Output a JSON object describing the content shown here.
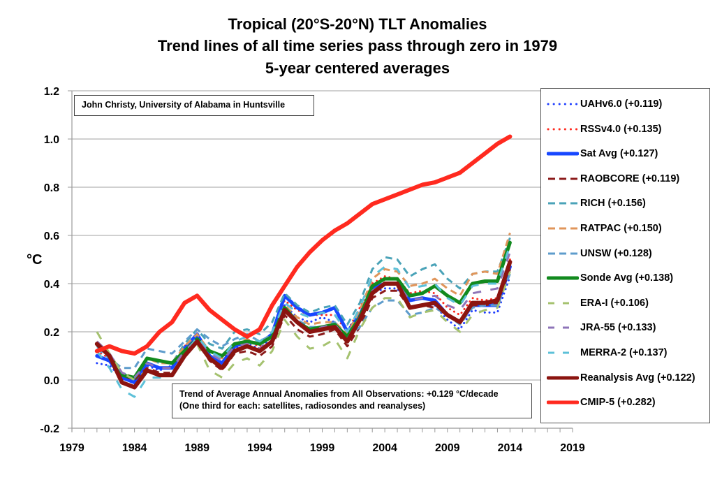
{
  "chart_data": {
    "type": "line",
    "title": "Tropical (20°S-20°N) TLT Anomalies",
    "subtitle_lines": [
      "Trend lines of all time series pass through zero in 1979",
      "5-year centered averages"
    ],
    "xlabel": "",
    "ylabel": "°C",
    "xlim": [
      1979,
      2019
    ],
    "ylim": [
      -0.2,
      1.2
    ],
    "x_ticks": [
      "1979",
      "1984",
      "1989",
      "1994",
      "1999",
      "2004",
      "2009",
      "2014",
      "2019"
    ],
    "y_ticks": [
      "-0.2",
      "0.0",
      "0.2",
      "0.4",
      "0.6",
      "0.8",
      "1.0",
      "1.2"
    ],
    "grid": "horizontal",
    "legend_position": "right",
    "annotations": {
      "credit": "John Christy, University of Alabama in Huntsville",
      "trend_line1": "Trend of Average Annual Anomalies from All Observations: +0.129 °C/decade",
      "trend_line2": "(One third for each: satellites, radiosondes and reanalyses)"
    },
    "x": [
      1981,
      1982,
      1983,
      1984,
      1985,
      1986,
      1987,
      1988,
      1989,
      1990,
      1991,
      1992,
      1993,
      1994,
      1995,
      1996,
      1997,
      1998,
      1999,
      2000,
      2001,
      2002,
      2003,
      2004,
      2005,
      2006,
      2007,
      2008,
      2009,
      2010,
      2011,
      2012,
      2013,
      2014
    ],
    "series": [
      {
        "name": "UAHv6.0 (+0.119)",
        "color": "#1f3fff",
        "style": "dotted",
        "width": 3,
        "values": [
          0.07,
          0.06,
          0.01,
          -0.01,
          0.06,
          0.04,
          0.06,
          0.13,
          0.18,
          0.09,
          0.05,
          0.13,
          0.15,
          0.13,
          0.18,
          0.31,
          0.26,
          0.24,
          0.26,
          0.24,
          0.17,
          0.24,
          0.36,
          0.38,
          0.38,
          0.3,
          0.31,
          0.31,
          0.25,
          0.21,
          0.29,
          0.28,
          0.28,
          0.43
        ]
      },
      {
        "name": "RSSv4.0 (+0.135)",
        "color": "#ff2a1f",
        "style": "dotted",
        "width": 3,
        "values": [
          0.12,
          0.09,
          0.02,
          0.0,
          0.07,
          0.05,
          0.05,
          0.14,
          0.19,
          0.12,
          0.09,
          0.15,
          0.16,
          0.14,
          0.19,
          0.33,
          0.29,
          0.27,
          0.27,
          0.27,
          0.2,
          0.3,
          0.4,
          0.43,
          0.42,
          0.36,
          0.37,
          0.36,
          0.3,
          0.27,
          0.34,
          0.33,
          0.34,
          0.5
        ]
      },
      {
        "name": "Sat Avg (+0.127)",
        "color": "#1747ff",
        "style": "solid",
        "width": 5,
        "values": [
          0.1,
          0.08,
          0.01,
          -0.01,
          0.07,
          0.05,
          0.05,
          0.13,
          0.19,
          0.1,
          0.07,
          0.14,
          0.16,
          0.15,
          0.19,
          0.35,
          0.3,
          0.27,
          0.28,
          0.3,
          0.2,
          0.27,
          0.38,
          0.4,
          0.4,
          0.33,
          0.34,
          0.33,
          0.27,
          0.24,
          0.31,
          0.31,
          0.31,
          0.47
        ]
      },
      {
        "name": "RAOBCORE (+0.119)",
        "color": "#8b1a1a",
        "style": "dashed",
        "width": 3,
        "values": [
          0.16,
          0.11,
          0.02,
          0.0,
          0.05,
          0.03,
          0.03,
          0.1,
          0.16,
          0.08,
          0.04,
          0.11,
          0.12,
          0.1,
          0.14,
          0.27,
          0.21,
          0.18,
          0.19,
          0.21,
          0.14,
          0.22,
          0.34,
          0.37,
          0.37,
          0.3,
          0.31,
          0.3,
          0.27,
          0.24,
          0.31,
          0.31,
          0.32,
          0.46
        ]
      },
      {
        "name": "RICH (+0.156)",
        "color": "#4aa3b8",
        "style": "dashed",
        "width": 3,
        "values": [
          0.14,
          0.1,
          0.03,
          0.01,
          0.09,
          0.07,
          0.07,
          0.15,
          0.21,
          0.15,
          0.13,
          0.2,
          0.21,
          0.19,
          0.24,
          0.36,
          0.31,
          0.28,
          0.3,
          0.31,
          0.23,
          0.32,
          0.46,
          0.51,
          0.5,
          0.43,
          0.46,
          0.48,
          0.42,
          0.38,
          0.44,
          0.45,
          0.45,
          0.59
        ]
      },
      {
        "name": "RATPAC (+0.150)",
        "color": "#e0955a",
        "style": "dashed",
        "width": 3,
        "values": [
          0.15,
          0.11,
          0.03,
          0.01,
          0.09,
          0.07,
          0.07,
          0.14,
          0.19,
          0.12,
          0.09,
          0.15,
          0.17,
          0.15,
          0.18,
          0.31,
          0.26,
          0.23,
          0.24,
          0.24,
          0.19,
          0.29,
          0.42,
          0.46,
          0.45,
          0.39,
          0.4,
          0.42,
          0.38,
          0.35,
          0.44,
          0.45,
          0.44,
          0.61
        ]
      },
      {
        "name": "UNSW (+0.128)",
        "color": "#5e9ccc",
        "style": "dashed",
        "width": 3,
        "values": [
          0.13,
          0.09,
          0.05,
          0.05,
          0.13,
          0.12,
          0.11,
          0.16,
          0.21,
          0.17,
          0.14,
          0.17,
          0.19,
          0.16,
          0.19,
          0.29,
          0.25,
          0.22,
          0.22,
          0.24,
          0.18,
          0.22,
          0.3,
          0.33,
          0.33,
          0.27,
          0.28,
          0.3,
          0.27,
          0.23,
          0.3,
          0.31,
          0.31,
          0.44
        ]
      },
      {
        "name": "Sonde Avg (+0.138)",
        "color": "#128a1e",
        "style": "solid",
        "width": 5,
        "values": [
          0.15,
          0.1,
          0.02,
          0.01,
          0.09,
          0.08,
          0.07,
          0.12,
          0.17,
          0.12,
          0.1,
          0.15,
          0.16,
          0.15,
          0.18,
          0.3,
          0.24,
          0.21,
          0.22,
          0.23,
          0.18,
          0.26,
          0.39,
          0.42,
          0.42,
          0.35,
          0.36,
          0.39,
          0.35,
          0.32,
          0.4,
          0.41,
          0.41,
          0.57
        ]
      },
      {
        "name": "ERA-I (+0.106)",
        "color": "#a5c26f",
        "style": "dashed-long",
        "width": 3,
        "values": [
          0.2,
          0.11,
          0.03,
          0.0,
          0.04,
          0.02,
          0.03,
          0.1,
          0.15,
          0.04,
          0.01,
          0.07,
          0.09,
          0.06,
          0.12,
          0.25,
          0.18,
          0.13,
          0.14,
          0.17,
          0.09,
          0.21,
          0.3,
          0.34,
          0.34,
          0.26,
          0.28,
          0.29,
          0.24,
          0.2,
          0.27,
          0.29,
          0.3,
          0.45
        ]
      },
      {
        "name": "JRA-55 (+0.133)",
        "color": "#8e74b8",
        "style": "dashed-long",
        "width": 3,
        "values": [
          0.16,
          0.11,
          0.03,
          0.01,
          0.07,
          0.05,
          0.05,
          0.12,
          0.17,
          0.11,
          0.08,
          0.14,
          0.15,
          0.13,
          0.17,
          0.28,
          0.24,
          0.2,
          0.22,
          0.23,
          0.17,
          0.26,
          0.37,
          0.4,
          0.4,
          0.33,
          0.34,
          0.35,
          0.31,
          0.29,
          0.36,
          0.37,
          0.38,
          0.53
        ]
      },
      {
        "name": "MERRA-2 (+0.137)",
        "color": "#5cc0d8",
        "style": "dashed-long",
        "width": 3,
        "values": [
          0.12,
          0.05,
          -0.04,
          -0.07,
          0.01,
          0.01,
          0.02,
          0.1,
          0.18,
          0.12,
          0.09,
          0.16,
          0.18,
          0.16,
          0.2,
          0.32,
          0.28,
          0.26,
          0.28,
          0.27,
          0.2,
          0.3,
          0.43,
          0.47,
          0.46,
          0.38,
          0.39,
          0.4,
          0.34,
          0.31,
          0.39,
          0.4,
          0.4,
          0.56
        ]
      },
      {
        "name": "Reanalysis Avg (+0.122)",
        "color": "#8b1410",
        "style": "solid",
        "width": 6,
        "values": [
          0.15,
          0.1,
          -0.01,
          -0.03,
          0.04,
          0.02,
          0.02,
          0.1,
          0.16,
          0.09,
          0.05,
          0.12,
          0.14,
          0.12,
          0.16,
          0.29,
          0.24,
          0.2,
          0.21,
          0.22,
          0.16,
          0.25,
          0.36,
          0.4,
          0.4,
          0.3,
          0.31,
          0.32,
          0.27,
          0.24,
          0.32,
          0.32,
          0.33,
          0.49
        ]
      },
      {
        "name": "CMIP-5 (+0.282)",
        "color": "#ff2a1f",
        "style": "solid",
        "width": 6,
        "values": [
          0.12,
          0.14,
          0.12,
          0.11,
          0.14,
          0.2,
          0.24,
          0.32,
          0.35,
          0.29,
          0.25,
          0.21,
          0.18,
          0.21,
          0.31,
          0.39,
          0.47,
          0.53,
          0.58,
          0.62,
          0.65,
          0.69,
          0.73,
          0.75,
          0.77,
          0.79,
          0.81,
          0.82,
          0.84,
          0.86,
          0.9,
          0.94,
          0.98,
          1.01
        ]
      }
    ]
  }
}
